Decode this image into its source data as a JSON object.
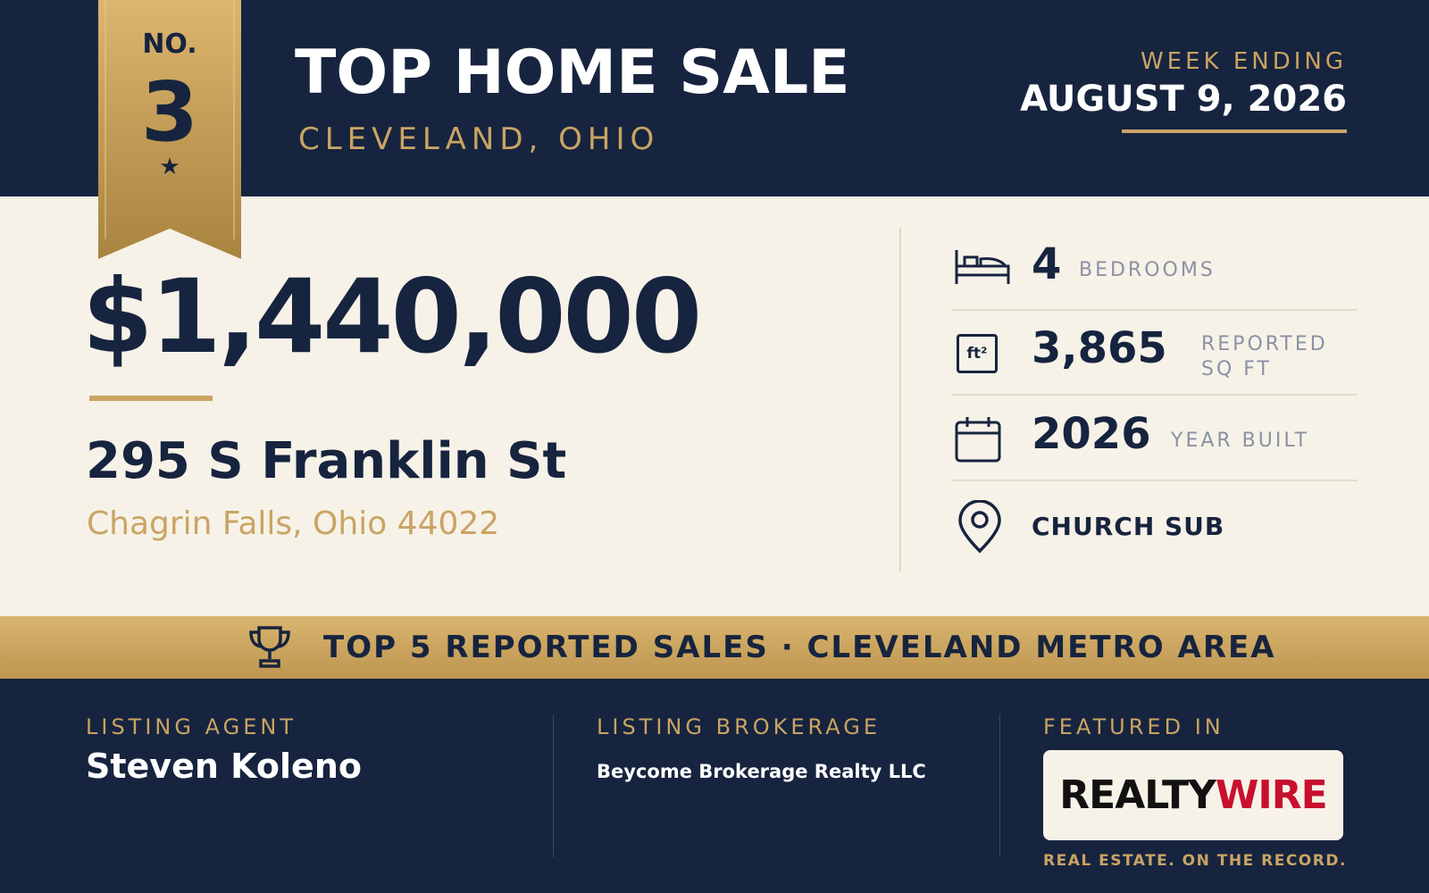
{
  "badge": {
    "label": "NO.",
    "number": "3"
  },
  "header": {
    "title": "TOP HOME SALE",
    "subtitle": "CLEVELAND, OHIO",
    "week_label": "WEEK ENDING",
    "week_date": "AUGUST 9, 2026"
  },
  "sale": {
    "price": "$1,440,000",
    "street": "295 S Franklin St",
    "city": "Chagrin Falls, Ohio 44022"
  },
  "details": [
    {
      "value": "4",
      "label": "BEDROOMS"
    },
    {
      "icon_label": "ft²",
      "value": "3,865",
      "label": "REPORTED SQ FT"
    },
    {
      "value": "2026",
      "label": "YEAR BUILT"
    },
    {
      "value": "CHURCH SUB"
    }
  ],
  "banner": "TOP 5 REPORTED SALES · CLEVELAND METRO AREA",
  "footer": {
    "agent_label": "LISTING AGENT",
    "agent": "Steven Koleno",
    "brokerage_label": "LISTING BROKERAGE",
    "brokerage": "Beycome Brokerage Realty LLC",
    "featured_label": "FEATURED IN",
    "logo": [
      "REALTY",
      "WIRE"
    ],
    "tagline": "REAL ESTATE. ON THE RECORD."
  }
}
